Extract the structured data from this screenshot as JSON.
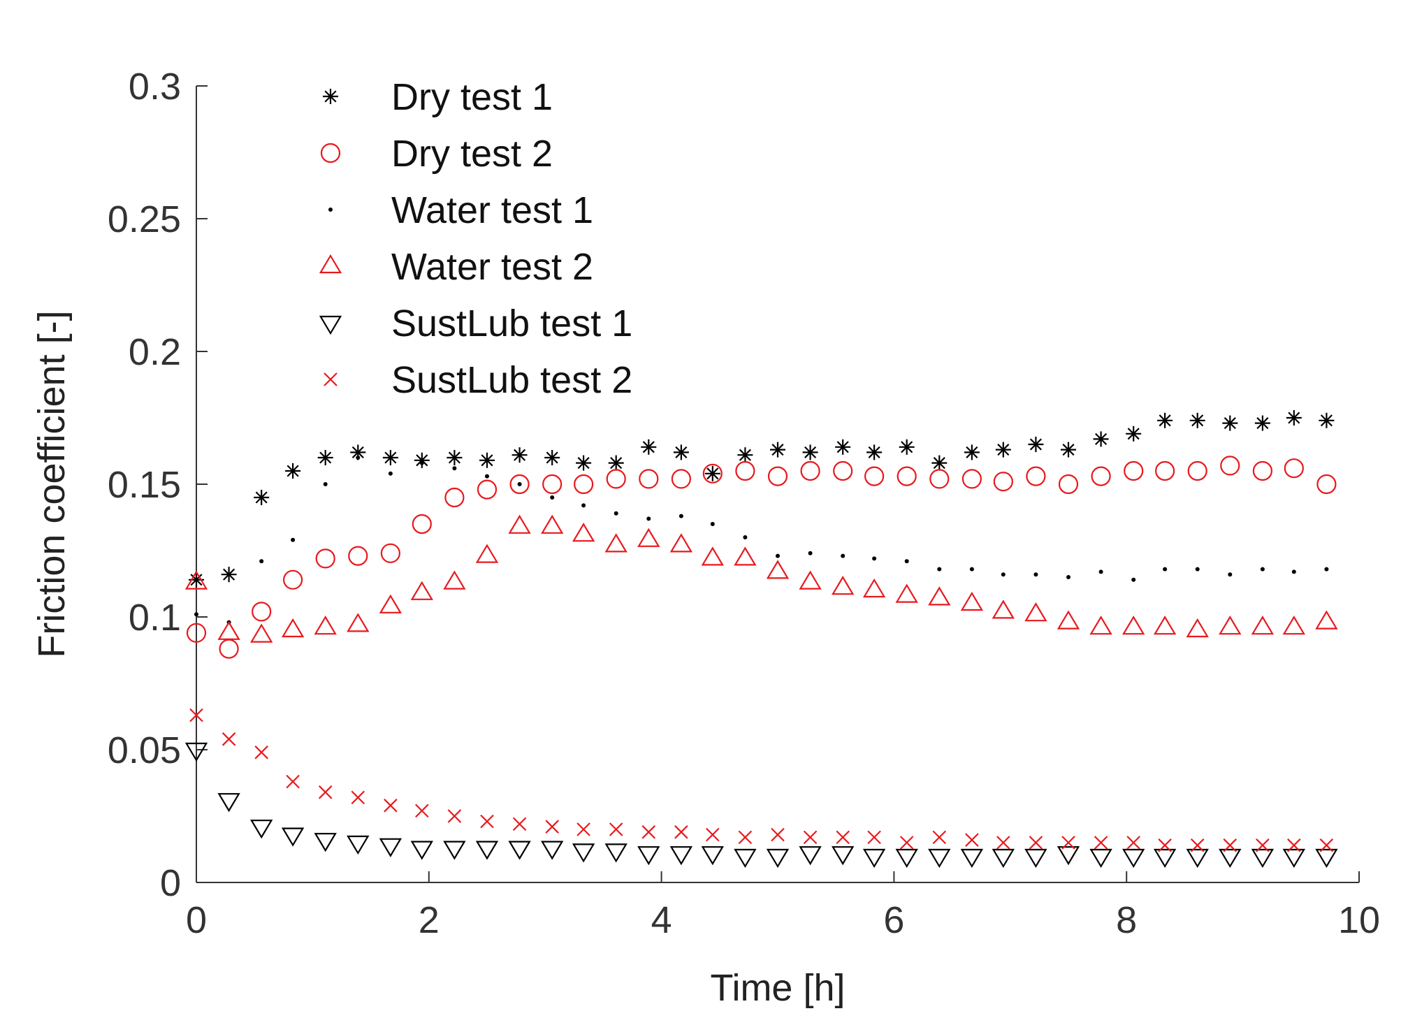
{
  "chart_data": {
    "type": "scatter",
    "title": "",
    "xlabel": "Time [h]",
    "ylabel": "Friction coefficient [-]",
    "xlim": [
      0,
      10
    ],
    "ylim": [
      0,
      0.3
    ],
    "xticks": [
      0,
      2,
      4,
      6,
      8,
      10
    ],
    "xtick_labels": [
      "0",
      "2",
      "4",
      "6",
      "8",
      "10"
    ],
    "yticks": [
      0,
      0.05,
      0.1,
      0.15,
      0.2,
      0.25,
      0.3
    ],
    "ytick_labels": [
      "0",
      "0.05",
      "0.1",
      "0.15",
      "0.2",
      "0.25",
      "0.3"
    ],
    "grid": false,
    "legend_position": "top-left",
    "x": [
      0,
      0.28,
      0.56,
      0.83,
      1.11,
      1.39,
      1.67,
      1.94,
      2.22,
      2.5,
      2.78,
      3.06,
      3.33,
      3.61,
      3.89,
      4.17,
      4.44,
      4.72,
      5.0,
      5.28,
      5.56,
      5.83,
      6.11,
      6.39,
      6.67,
      6.94,
      7.22,
      7.5,
      7.78,
      8.06,
      8.33,
      8.61,
      8.89,
      9.17,
      9.44,
      9.72
    ],
    "series": [
      {
        "name": "Dry test 1",
        "marker": "asterisk",
        "color": "#000000",
        "values": [
          0.114,
          0.116,
          0.145,
          0.155,
          0.16,
          0.162,
          0.16,
          0.159,
          0.16,
          0.159,
          0.161,
          0.16,
          0.158,
          0.158,
          0.164,
          0.162,
          0.154,
          0.161,
          0.163,
          0.162,
          0.164,
          0.162,
          0.164,
          0.158,
          0.162,
          0.163,
          0.165,
          0.163,
          0.167,
          0.169,
          0.174,
          0.174,
          0.173,
          0.173,
          0.175,
          0.174
        ]
      },
      {
        "name": "Dry test 2",
        "marker": "circle",
        "color": "#e8191d",
        "values": [
          0.094,
          0.088,
          0.102,
          0.114,
          0.122,
          0.123,
          0.124,
          0.135,
          0.145,
          0.148,
          0.15,
          0.15,
          0.15,
          0.152,
          0.152,
          0.152,
          0.154,
          0.155,
          0.153,
          0.155,
          0.155,
          0.153,
          0.153,
          0.152,
          0.152,
          0.151,
          0.153,
          0.15,
          0.153,
          0.155,
          0.155,
          0.155,
          0.157,
          0.155,
          0.156,
          0.15
        ]
      },
      {
        "name": "Water test 1",
        "marker": "dot",
        "color": "#000000",
        "values": [
          0.101,
          0.098,
          0.121,
          0.129,
          0.15,
          0.16,
          0.154,
          0.158,
          0.156,
          0.153,
          0.15,
          0.145,
          0.142,
          0.139,
          0.137,
          0.138,
          0.135,
          0.13,
          0.123,
          0.124,
          0.123,
          0.122,
          0.121,
          0.118,
          0.118,
          0.116,
          0.116,
          0.115,
          0.117,
          0.114,
          0.118,
          0.118,
          0.116,
          0.118,
          0.117,
          0.118
        ]
      },
      {
        "name": "Water test 2",
        "marker": "triangle-up",
        "color": "#e8191d",
        "values": [
          0.113,
          0.094,
          0.093,
          0.095,
          0.096,
          0.097,
          0.104,
          0.109,
          0.113,
          0.123,
          0.134,
          0.134,
          0.131,
          0.127,
          0.129,
          0.127,
          0.122,
          0.122,
          0.117,
          0.113,
          0.111,
          0.11,
          0.108,
          0.107,
          0.105,
          0.102,
          0.101,
          0.098,
          0.096,
          0.096,
          0.096,
          0.095,
          0.096,
          0.096,
          0.096,
          0.098
        ]
      },
      {
        "name": "SustLub test 1",
        "marker": "triangle-down",
        "color": "#000000",
        "values": [
          0.05,
          0.031,
          0.021,
          0.018,
          0.016,
          0.015,
          0.014,
          0.013,
          0.013,
          0.013,
          0.013,
          0.013,
          0.012,
          0.012,
          0.011,
          0.011,
          0.011,
          0.01,
          0.01,
          0.011,
          0.011,
          0.01,
          0.01,
          0.01,
          0.01,
          0.01,
          0.01,
          0.011,
          0.01,
          0.01,
          0.01,
          0.01,
          0.01,
          0.01,
          0.01,
          0.01
        ]
      },
      {
        "name": "SustLub test 2",
        "marker": "cross",
        "color": "#e8191d",
        "values": [
          0.063,
          0.054,
          0.049,
          0.038,
          0.034,
          0.032,
          0.029,
          0.027,
          0.025,
          0.023,
          0.022,
          0.021,
          0.02,
          0.02,
          0.019,
          0.019,
          0.018,
          0.017,
          0.018,
          0.017,
          0.017,
          0.017,
          0.015,
          0.017,
          0.016,
          0.015,
          0.015,
          0.015,
          0.015,
          0.015,
          0.014,
          0.014,
          0.014,
          0.014,
          0.014,
          0.014
        ]
      }
    ]
  }
}
